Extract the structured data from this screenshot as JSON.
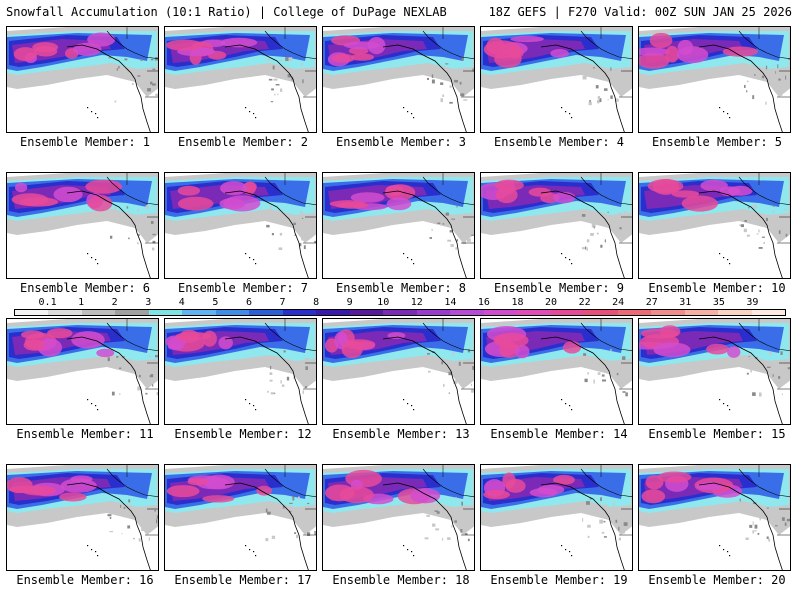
{
  "header": {
    "title": "Snowfall Accumulation (10:1 Ratio) | College of DuPage NEXLAB",
    "run_info": "18Z GEFS | F270 Valid: 00Z SUN JAN 25 2026"
  },
  "members": [
    {
      "label": "Ensemble Member: 1"
    },
    {
      "label": "Ensemble Member: 2"
    },
    {
      "label": "Ensemble Member: 3"
    },
    {
      "label": "Ensemble Member: 4"
    },
    {
      "label": "Ensemble Member: 5"
    },
    {
      "label": "Ensemble Member: 6"
    },
    {
      "label": "Ensemble Member: 7"
    },
    {
      "label": "Ensemble Member: 8"
    },
    {
      "label": "Ensemble Member: 9"
    },
    {
      "label": "Ensemble Member: 10"
    },
    {
      "label": "Ensemble Member: 11"
    },
    {
      "label": "Ensemble Member: 12"
    },
    {
      "label": "Ensemble Member: 13"
    },
    {
      "label": "Ensemble Member: 14"
    },
    {
      "label": "Ensemble Member: 15"
    },
    {
      "label": "Ensemble Member: 16"
    },
    {
      "label": "Ensemble Member: 17"
    },
    {
      "label": "Ensemble Member: 18"
    },
    {
      "label": "Ensemble Member: 19"
    },
    {
      "label": "Ensemble Member: 20"
    }
  ],
  "colorbar": {
    "labels": [
      "0.1",
      "1",
      "2",
      "3",
      "4",
      "5",
      "6",
      "7",
      "8",
      "9",
      "10",
      "12",
      "14",
      "16",
      "18",
      "20",
      "22",
      "24",
      "27",
      "31",
      "35",
      "39"
    ],
    "colors": [
      "#f4f4f4",
      "#dcdcdc",
      "#bebebe",
      "#a0a0a0",
      "#7fe3e3",
      "#63b3f0",
      "#3f8de6",
      "#2d5fd6",
      "#2a2ecc",
      "#3a1aa8",
      "#5a1a9e",
      "#7a2ab6",
      "#9a3ad0",
      "#b84ad8",
      "#d24cd0",
      "#e04cb8",
      "#e84a9a",
      "#e8507a",
      "#ec6a78",
      "#f08c8c",
      "#f6b0a4",
      "#fad4c4",
      "#fdebe2"
    ]
  },
  "map_colors": {
    "ocean": "#ffffff",
    "light": "#c8c8c8",
    "dark": "#8a8a8a",
    "cyan": "#8ee8ee",
    "blue": "#3a6ee8",
    "navy": "#2a2ecc",
    "purple": "#7a2ab6",
    "magenta": "#d24cd0",
    "pink": "#e84a9a",
    "coast": "#000000"
  }
}
